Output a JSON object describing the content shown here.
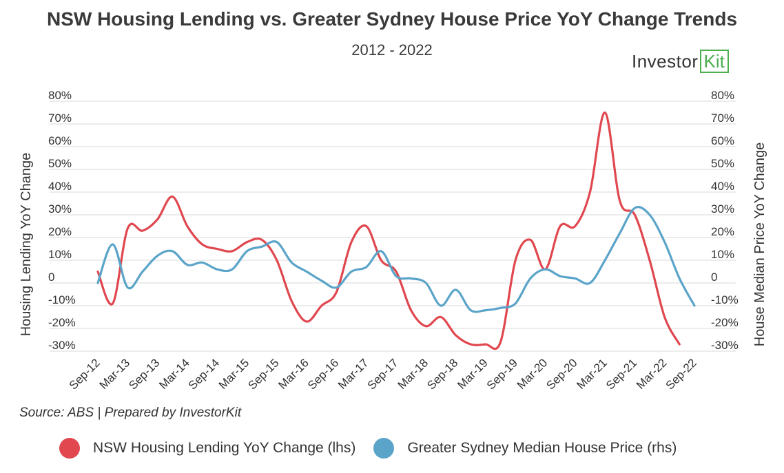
{
  "chart_data": {
    "type": "line",
    "title": "NSW Housing Lending vs. Greater Sydney House Price YoY Change Trends",
    "subtitle": "2012 - 2022",
    "brand": {
      "text": "Investor",
      "box_text": "Kit"
    },
    "ylabel_left": "Housing Lending YoY Change",
    "ylabel_right": "House Median Price YoY Change",
    "ylim": [
      -30,
      80
    ],
    "y_ticks": [
      -30,
      -20,
      -10,
      0,
      10,
      20,
      30,
      40,
      50,
      60,
      70,
      80
    ],
    "y_tick_labels": [
      "-30%",
      "-20%",
      "-10%",
      "0",
      "10%",
      "20%",
      "30%",
      "40%",
      "50%",
      "60%",
      "70%",
      "80%"
    ],
    "x_tick_labels": [
      "Sep-12",
      "Mar-13",
      "Sep-13",
      "Mar-14",
      "Sep-14",
      "Mar-15",
      "Sep-15",
      "Mar-16",
      "Sep-16",
      "Mar-17",
      "Sep-17",
      "Mar-18",
      "Sep-18",
      "Mar-19",
      "Sep-19",
      "Mar-20",
      "Sep-20",
      "Mar-21",
      "Sep-21",
      "Mar-22",
      "Sep-22"
    ],
    "x_start": "Sep-12",
    "x_unit": "quarter",
    "series": [
      {
        "name": "NSW Housing Lending YoY Change (lhs)",
        "axis": "left",
        "color": "#e0474f",
        "values": [
          5,
          -9,
          24,
          23,
          28,
          38,
          25,
          17,
          15,
          14,
          18,
          19,
          10,
          -8,
          -17,
          -10,
          -4,
          18,
          25,
          10,
          5,
          -12,
          -19,
          -15,
          -23,
          -27,
          -27,
          -26,
          10,
          19,
          6,
          25,
          25,
          40,
          75,
          36,
          30,
          10,
          -15,
          -27
        ]
      },
      {
        "name": "Greater Sydney Median House Price (rhs)",
        "axis": "right",
        "color": "#5ba4c9",
        "values": [
          0,
          17,
          -2,
          5,
          12,
          14,
          8,
          9,
          6,
          6,
          14,
          16,
          18,
          9,
          5,
          1,
          -2,
          5,
          7,
          14,
          3,
          2,
          0,
          -10,
          -3,
          -12,
          -12,
          -11,
          -9,
          2,
          6,
          3,
          2,
          0,
          10,
          22,
          33,
          30,
          18,
          2,
          -10
        ]
      }
    ],
    "source": "Source: ABS | Prepared by InvestorKit"
  }
}
